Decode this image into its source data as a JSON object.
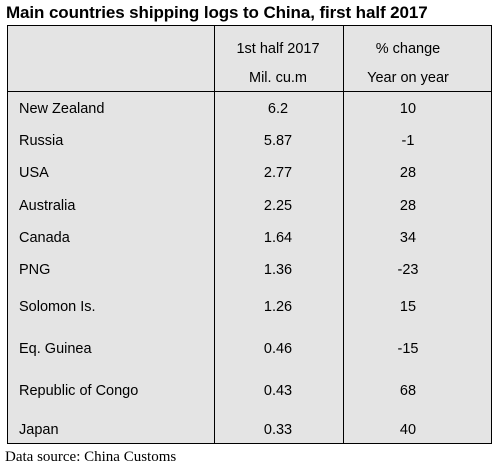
{
  "title": "Main countries shipping logs to China, first half 2017",
  "headers": {
    "col1_line1": "1st half 2017",
    "col1_line2": "Mil. cu.m",
    "col2_line1": "% change",
    "col2_line2": "Year on year"
  },
  "rows": [
    {
      "country": "New Zealand",
      "volume": "6.2",
      "change": "10"
    },
    {
      "country": "Russia",
      "volume": "5.87",
      "change": "-1"
    },
    {
      "country": "USA",
      "volume": "2.77",
      "change": "28"
    },
    {
      "country": "Australia",
      "volume": "2.25",
      "change": "28"
    },
    {
      "country": "Canada",
      "volume": "1.64",
      "change": "34"
    },
    {
      "country": "PNG",
      "volume": "1.36",
      "change": "-23"
    },
    {
      "country": "Solomon Is.",
      "volume": "1.26",
      "change": "15"
    },
    {
      "country": "Eq. Guinea",
      "volume": "0.46",
      "change": "-15"
    },
    {
      "country": "Republic of Congo",
      "volume": "0.43",
      "change": "68"
    },
    {
      "country": "Japan",
      "volume": "0.33",
      "change": "40"
    }
  ],
  "source": "Data source: China Customs",
  "colors": {
    "table_background": "#e4e4e4",
    "rule": "#000000"
  }
}
